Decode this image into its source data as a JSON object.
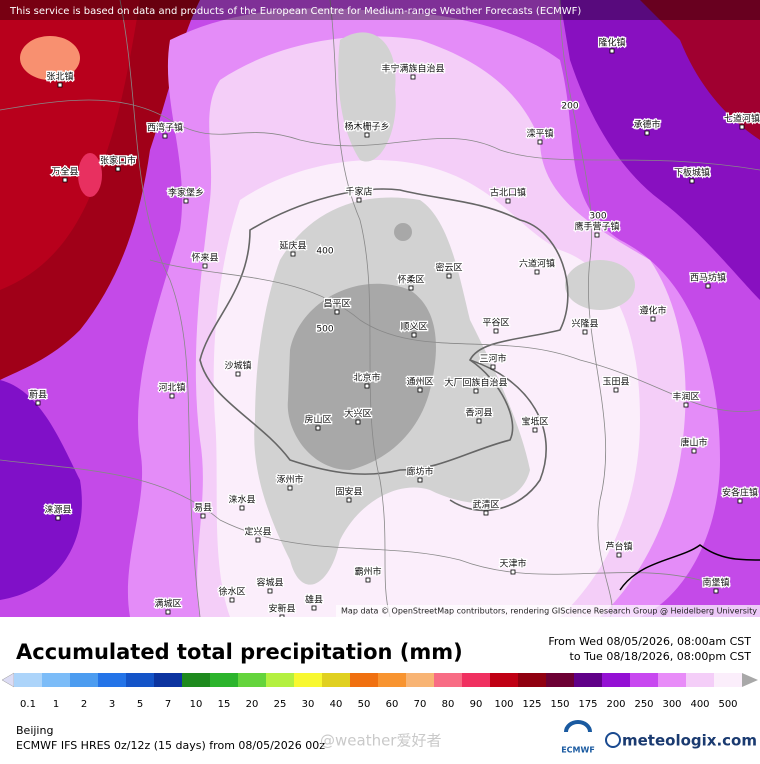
{
  "header": {
    "notice": "This service is based on data and products of the European Centre for Medium-range Weather Forecasts (ECMWF)"
  },
  "map": {
    "places": [
      "张北镇",
      "万全县",
      "张家口市",
      "西湾子镇",
      "李家堡乡",
      "怀来县",
      "延庆县",
      "丰宁满族自治县",
      "杨木栅子乡",
      "千家店",
      "隆化镇",
      "承德市",
      "七道河镇",
      "下板城镇",
      "滦平镇",
      "古北口镇",
      "六道河镇",
      "鹰手营子镇",
      "密云区",
      "怀柔区",
      "昌平区",
      "顺义区",
      "平谷区",
      "兴隆县",
      "遵化市",
      "西马坊镇",
      "三河市",
      "北京市",
      "通州区",
      "大厂回族自治县",
      "香河县",
      "宝坻区",
      "玉田县",
      "丰润区",
      "唐山市",
      "安各庄镇",
      "蔚县",
      "涞源县",
      "沙城镇",
      "河北镇",
      "房山区",
      "大兴区",
      "涿州市",
      "固安县",
      "廊坊市",
      "武清区",
      "易县",
      "涞水县",
      "定兴县",
      "徐水区",
      "容城县",
      "安新县",
      "雄县",
      "霸州市",
      "天津市",
      "芦台镇",
      "南堡镇",
      "满城区"
    ],
    "contours": [
      200,
      300,
      400,
      500
    ],
    "attribution": "Map data © OpenStreetMap contributors, rendering GIScience Research Group @ Heidelberg University"
  },
  "legend": {
    "title": "Accumulated total precipitation (mm)",
    "period": [
      "From Wed 08/05/2026, 08:00am CST",
      "to Tue 08/18/2026, 08:00pm CST"
    ],
    "levels": [
      0.1,
      1,
      2,
      3,
      5,
      7,
      10,
      15,
      20,
      25,
      30,
      40,
      50,
      60,
      70,
      80,
      90,
      100,
      125,
      150,
      175,
      200,
      250,
      300,
      400,
      500
    ],
    "colors": [
      "#dcdcf4",
      "#acd4fa",
      "#7cbcf8",
      "#4c9cf0",
      "#2474e8",
      "#1454c8",
      "#0c34a0",
      "#1e8a1e",
      "#2cb42c",
      "#64d43c",
      "#b4f040",
      "#f8f830",
      "#e0d020",
      "#f07010",
      "#f89430",
      "#f8b474",
      "#f86c84",
      "#f03060",
      "#c00014",
      "#900010",
      "#6c0034",
      "#600088",
      "#9410d4",
      "#c848f0",
      "#e88cf8",
      "#f4cef8",
      "#fbeefb",
      "#d2d2d2",
      "#a8a8a8"
    ]
  },
  "footer": {
    "location": "Beijing",
    "model": "ECMWF IFS HRES 0z/12z (15 days) from 08/05/2026 00z",
    "watermark": "@weather爱好者",
    "logos": [
      "ECMWF",
      "meteologix.com"
    ]
  }
}
